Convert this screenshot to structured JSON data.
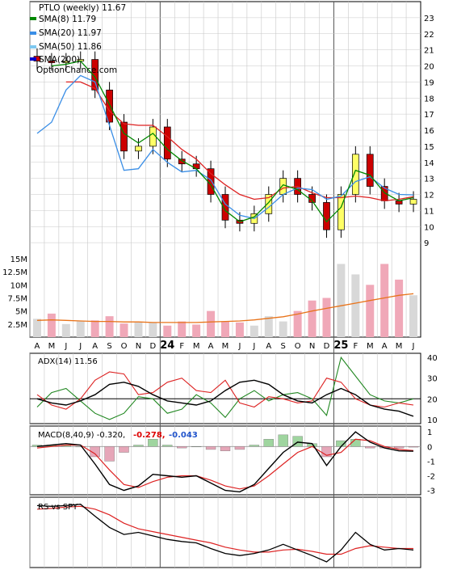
{
  "legend": {
    "title": "PTLO (weekly) 11.67",
    "items": [
      {
        "label": "SMA(8) 11.79",
        "color": "#008800"
      },
      {
        "label": "SMA(20) 11.97",
        "color": "#3a8ee6"
      },
      {
        "label": "SMA(50) 11.86",
        "color": "#7ec8f0"
      },
      {
        "label": "SMA(200)",
        "color": "#0000cc"
      }
    ],
    "watermark": "OptionChance.com"
  },
  "price_axis": {
    "ticks": [
      "23",
      "22",
      "21",
      "20",
      "19",
      "18",
      "17",
      "16",
      "15",
      "14",
      "13",
      "12",
      "11",
      "10",
      "9"
    ]
  },
  "volume_axis": {
    "ticks": [
      "15M",
      "12.5M",
      "10M",
      "7.5M",
      "5M",
      "2.5M"
    ]
  },
  "time_axis": {
    "labels": [
      "A",
      "M",
      "J",
      "J",
      "A",
      "S",
      "O",
      "N",
      "D",
      "24",
      "F",
      "M",
      "A",
      "M",
      "J",
      "J",
      "A",
      "S",
      "O",
      "N",
      "D",
      "25",
      "F",
      "M",
      "A",
      "M",
      "J"
    ]
  },
  "adx": {
    "label": "ADX(14) 11.56",
    "ticks": [
      "40",
      "30",
      "20",
      "10"
    ]
  },
  "macd": {
    "label": "MACD(8,40,9) -0.320,",
    "value2": "-0.278,",
    "value3": "-0.043",
    "value2_color": "#dd0000",
    "value3_color": "#2255cc",
    "ticks": [
      "1",
      "0",
      "-1",
      "-2",
      "-3"
    ]
  },
  "rs": {
    "label": "RS vs SPY"
  },
  "colors": {
    "up_candle": "#ffff66",
    "down_candle": "#cc0000",
    "vol_up": "#d8d8d8",
    "vol_down": "#f0a8b8",
    "grid": "#c8c8c8"
  },
  "chart_data": [
    {
      "type": "candlestick",
      "title": "PTLO (weekly) 11.67",
      "x": [
        "2023-04",
        "2023-05",
        "2023-06",
        "2023-07",
        "2023-08",
        "2023-09",
        "2023-10",
        "2023-11",
        "2023-12",
        "2024-01",
        "2024-02",
        "2024-03",
        "2024-04",
        "2024-05",
        "2024-06",
        "2024-07",
        "2024-08",
        "2024-09",
        "2024-10",
        "2024-11",
        "2024-12",
        "2025-01",
        "2025-02",
        "2025-03",
        "2025-04",
        "2025-05",
        "2025-06"
      ],
      "close": [
        20.3,
        20.2,
        20.3,
        20.4,
        18.5,
        16.5,
        14.7,
        15.0,
        16.2,
        14.2,
        13.9,
        13.6,
        12.0,
        10.4,
        10.2,
        10.8,
        12.0,
        13.0,
        12.0,
        11.5,
        9.8,
        12.0,
        14.5,
        12.5,
        11.6,
        11.4,
        11.7
      ],
      "sma8": [
        null,
        20.0,
        20.1,
        20.3,
        19.3,
        17.6,
        15.8,
        15.2,
        15.8,
        14.8,
        14.1,
        13.6,
        12.6,
        11.0,
        10.3,
        10.6,
        11.5,
        12.6,
        12.3,
        11.6,
        10.3,
        11.2,
        13.5,
        13.2,
        12.1,
        11.6,
        11.8
      ],
      "sma20": [
        15.8,
        16.5,
        18.5,
        19.4,
        19.0,
        16.3,
        13.5,
        13.6,
        14.8,
        14.0,
        13.4,
        13.5,
        12.9,
        11.4,
        10.7,
        10.5,
        11.2,
        12.0,
        12.4,
        12.3,
        11.7,
        11.9,
        12.8,
        13.1,
        12.4,
        12.0,
        11.97
      ],
      "sma50": [
        null,
        null,
        19.0,
        19.0,
        18.6,
        17.2,
        16.4,
        16.3,
        16.3,
        15.6,
        14.8,
        14.2,
        13.3,
        12.6,
        12.0,
        11.7,
        11.8,
        12.4,
        12.5,
        12.1,
        11.8,
        11.8,
        11.9,
        11.8,
        11.6,
        11.7,
        11.86
      ],
      "ylim": [
        8,
        24
      ]
    },
    {
      "type": "bar",
      "title": "Volume",
      "x": [
        "2023-04",
        "2023-05",
        "2023-06",
        "2023-07",
        "2023-08",
        "2023-09",
        "2023-10",
        "2023-11",
        "2023-12",
        "2024-01",
        "2024-02",
        "2024-03",
        "2024-04",
        "2024-05",
        "2024-06",
        "2024-07",
        "2024-08",
        "2024-09",
        "2024-10",
        "2024-11",
        "2024-12",
        "2025-01",
        "2025-02",
        "2025-03",
        "2025-04",
        "2025-05",
        "2025-06"
      ],
      "values": [
        3.5,
        4.5,
        2.5,
        3.0,
        3.2,
        4.0,
        2.6,
        2.8,
        2.8,
        2.2,
        3.0,
        2.4,
        5.0,
        3.0,
        2.8,
        2.2,
        4.0,
        3.0,
        5.0,
        7.0,
        7.5,
        14.0,
        12.0,
        10.0,
        14.0,
        11.0,
        8.0
      ],
      "avg": [
        3.2,
        3.3,
        3.2,
        3.1,
        3.0,
        3.0,
        2.9,
        2.9,
        2.8,
        2.8,
        2.8,
        2.8,
        2.9,
        3.0,
        3.1,
        3.3,
        3.6,
        3.9,
        4.4,
        5.0,
        5.5,
        6.0,
        6.5,
        7.0,
        7.5,
        8.0,
        8.3
      ],
      "ylim": [
        0,
        15
      ]
    },
    {
      "type": "line",
      "title": "ADX(14) 11.56",
      "x": [
        "2023-04",
        "2023-05",
        "2023-06",
        "2023-07",
        "2023-08",
        "2023-09",
        "2023-10",
        "2023-11",
        "2023-12",
        "2024-01",
        "2024-02",
        "2024-03",
        "2024-04",
        "2024-05",
        "2024-06",
        "2024-07",
        "2024-08",
        "2024-09",
        "2024-10",
        "2024-11",
        "2024-12",
        "2025-01",
        "2025-02",
        "2025-03",
        "2025-04",
        "2025-05",
        "2025-06"
      ],
      "series": [
        {
          "values": [
            20,
            18,
            17,
            19,
            22,
            27,
            28,
            26,
            22,
            19,
            18,
            17,
            19,
            24,
            28,
            29,
            27,
            22,
            19,
            18,
            22,
            25,
            22,
            17,
            15,
            14,
            11.56
          ]
        },
        {
          "values": [
            22,
            17,
            15,
            20,
            29,
            33,
            32,
            22,
            23,
            28,
            30,
            24,
            23,
            29,
            18,
            16,
            21,
            20,
            18,
            19,
            30,
            28,
            20,
            17,
            16,
            18,
            17
          ]
        },
        {
          "values": [
            16,
            23,
            25,
            19,
            13,
            10,
            13,
            21,
            20,
            13,
            15,
            22,
            18,
            11,
            20,
            24,
            19,
            22,
            23,
            20,
            12,
            40,
            31,
            22,
            19,
            18,
            20
          ]
        }
      ],
      "hline": 20,
      "ylim": [
        8,
        42
      ]
    },
    {
      "type": "line",
      "title": "MACD(8,40,9) -0.320,",
      "x": [
        "2023-04",
        "2023-05",
        "2023-06",
        "2023-07",
        "2023-08",
        "2023-09",
        "2023-10",
        "2023-11",
        "2023-12",
        "2024-01",
        "2024-02",
        "2024-03",
        "2024-04",
        "2024-05",
        "2024-06",
        "2024-07",
        "2024-08",
        "2024-09",
        "2024-10",
        "2024-11",
        "2024-12",
        "2025-01",
        "2025-02",
        "2025-03",
        "2025-04",
        "2025-05",
        "2025-06"
      ],
      "series": [
        {
          "values": [
            0.0,
            0.1,
            0.2,
            0.1,
            -1.2,
            -2.6,
            -3.0,
            -2.7,
            -1.9,
            -2.0,
            -2.1,
            -2.0,
            -2.5,
            -3.0,
            -3.1,
            -2.6,
            -1.5,
            -0.4,
            0.3,
            0.2,
            -1.3,
            0.0,
            1.0,
            0.3,
            -0.1,
            -0.3,
            -0.32
          ]
        },
        {
          "values": [
            -0.1,
            0.0,
            0.1,
            0.1,
            -0.5,
            -1.6,
            -2.6,
            -2.8,
            -2.4,
            -2.1,
            -2.0,
            -2.0,
            -2.3,
            -2.7,
            -2.9,
            -2.7,
            -2.0,
            -1.2,
            -0.4,
            0.0,
            -0.6,
            -0.4,
            0.5,
            0.4,
            0.0,
            -0.2,
            -0.278
          ]
        },
        {
          "values": [
            0.1,
            0.1,
            0.1,
            0.0,
            -0.7,
            -1.0,
            -0.4,
            0.1,
            0.5,
            0.1,
            -0.1,
            0.0,
            -0.2,
            -0.3,
            -0.2,
            0.1,
            0.5,
            0.8,
            0.7,
            0.2,
            -0.7,
            0.4,
            0.5,
            -0.1,
            -0.1,
            -0.1,
            -0.043
          ]
        }
      ],
      "ylim": [
        -3.3,
        1.4
      ]
    },
    {
      "type": "line",
      "title": "RS vs SPY",
      "x": [
        "2023-04",
        "2023-05",
        "2023-06",
        "2023-07",
        "2023-08",
        "2023-09",
        "2023-10",
        "2023-11",
        "2023-12",
        "2024-01",
        "2024-02",
        "2024-03",
        "2024-04",
        "2024-05",
        "2024-06",
        "2024-07",
        "2024-08",
        "2024-09",
        "2024-10",
        "2024-11",
        "2024-12",
        "2025-01",
        "2025-02",
        "2025-03",
        "2025-04",
        "2025-05",
        "2025-06"
      ],
      "series": [
        {
          "values": [
            0.93,
            0.92,
            0.93,
            0.95,
            0.78,
            0.62,
            0.52,
            0.55,
            0.5,
            0.45,
            0.42,
            0.4,
            0.32,
            0.25,
            0.22,
            0.25,
            0.3,
            0.38,
            0.3,
            0.22,
            0.13,
            0.3,
            0.55,
            0.38,
            0.3,
            0.32,
            0.3
          ]
        },
        {
          "values": [
            0.88,
            0.89,
            0.91,
            0.92,
            0.88,
            0.8,
            0.68,
            0.6,
            0.56,
            0.52,
            0.48,
            0.44,
            0.4,
            0.34,
            0.3,
            0.27,
            0.27,
            0.3,
            0.31,
            0.28,
            0.24,
            0.24,
            0.32,
            0.36,
            0.34,
            0.32,
            0.32
          ]
        }
      ],
      "ylim": [
        0.05,
        1.05
      ]
    }
  ]
}
